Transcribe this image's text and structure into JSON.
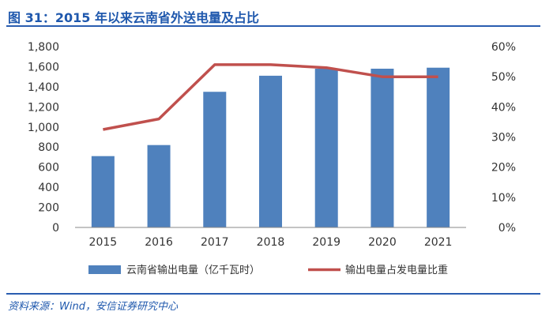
{
  "header": {
    "title": "图 31：2015 年以来云南省外送电量及占比"
  },
  "footer": {
    "source": "资料来源：Wind，安信证券研究中心"
  },
  "colors": {
    "bar": "#4f81bd",
    "line": "#c0504d",
    "accent": "#1f58ad"
  },
  "chart_data": {
    "type": "bar",
    "categories": [
      "2015",
      "2016",
      "2017",
      "2018",
      "2019",
      "2020",
      "2021"
    ],
    "series": [
      {
        "name": "云南省输出电量（亿千瓦时）",
        "type": "bar",
        "axis": "left",
        "values": [
          710,
          820,
          1350,
          1510,
          1580,
          1580,
          1590
        ]
      },
      {
        "name": "输出电量占发电量比重",
        "type": "line",
        "axis": "right",
        "values": [
          32.5,
          36,
          54,
          54,
          53,
          50,
          50
        ]
      }
    ],
    "ylim_left": [
      0,
      1800
    ],
    "yticks_left": [
      "0",
      "200",
      "400",
      "600",
      "800",
      "1,000",
      "1,200",
      "1,400",
      "1,600",
      "1,800"
    ],
    "ylim_right": [
      0,
      60
    ],
    "yticks_right": [
      "0%",
      "10%",
      "20%",
      "30%",
      "40%",
      "50%",
      "60%"
    ],
    "grid": false,
    "legend_position": "bottom"
  }
}
